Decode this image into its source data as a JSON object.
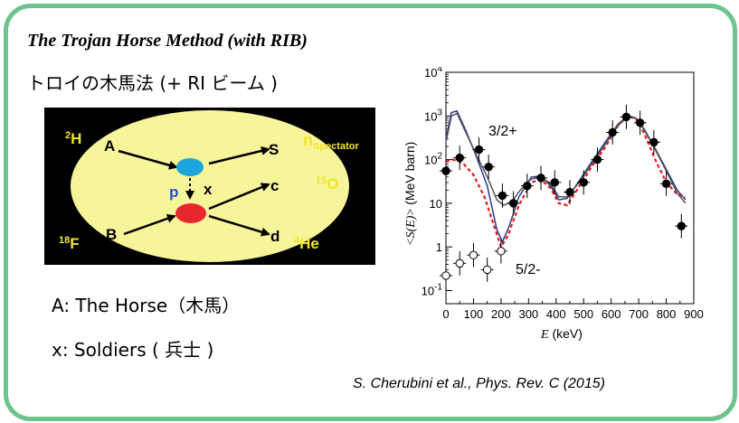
{
  "title": "The Trojan Horse Method (with RIB)",
  "subtitle": "トロイの木馬法 (+ RI ビーム )",
  "diagram": {
    "labels": {
      "h2": "2H",
      "a": "A",
      "s": "S",
      "n_spectator": "nSpectator",
      "p": "p",
      "x": "x",
      "c": "c",
      "o15": "15O",
      "b": "B",
      "f18": "18F",
      "d": "d",
      "he4": "4He"
    },
    "colors": {
      "background": "#000000",
      "ellipse": "#f7f59a",
      "blue_dot": "#1ba5dc",
      "red_dot": "#e8262d",
      "yellow_text": "#f1e62b"
    }
  },
  "legend": {
    "a_line": "A: The Horse（木馬）",
    "x_line": "x: Soldiers ( 兵士 )"
  },
  "citation": "S. Cherubini et al., Phys. Rev. C (2015)",
  "chart_data": {
    "type": "scatter",
    "xlabel": "E (keV)",
    "ylabel": "<S(E)> (MeV barn)",
    "xlim": [
      0,
      900
    ],
    "ylim": [
      0.05,
      10000
    ],
    "yscale": "log",
    "xticks": [
      "0",
      "100",
      "200",
      "300",
      "400",
      "500",
      "600",
      "700",
      "800",
      "900"
    ],
    "yticks": [
      "10^-1",
      "1",
      "10",
      "10^2",
      "10^3",
      "10^4"
    ],
    "annotations": [
      "3/2+",
      "5/2-"
    ],
    "series": [
      {
        "marker": "filled-circle",
        "x": [
          0,
          50,
          120,
          155,
          205,
          245,
          295,
          345,
          395,
          450,
          500,
          550,
          605,
          655,
          705,
          755,
          800,
          855
        ],
        "y": [
          55,
          110,
          170,
          68,
          15,
          10,
          25,
          38,
          30,
          18,
          30,
          100,
          420,
          950,
          700,
          250,
          28,
          3
        ]
      },
      {
        "marker": "open-circle",
        "x": [
          0,
          50,
          100,
          150,
          200
        ],
        "y": [
          0.22,
          0.42,
          0.65,
          0.3,
          0.8
        ]
      }
    ],
    "curves": [
      {
        "color": "#2b3a8e",
        "style": "solid"
      },
      {
        "color": "#e41a1c",
        "style": "dashed"
      },
      {
        "color": "#555555",
        "style": "solid"
      }
    ]
  }
}
